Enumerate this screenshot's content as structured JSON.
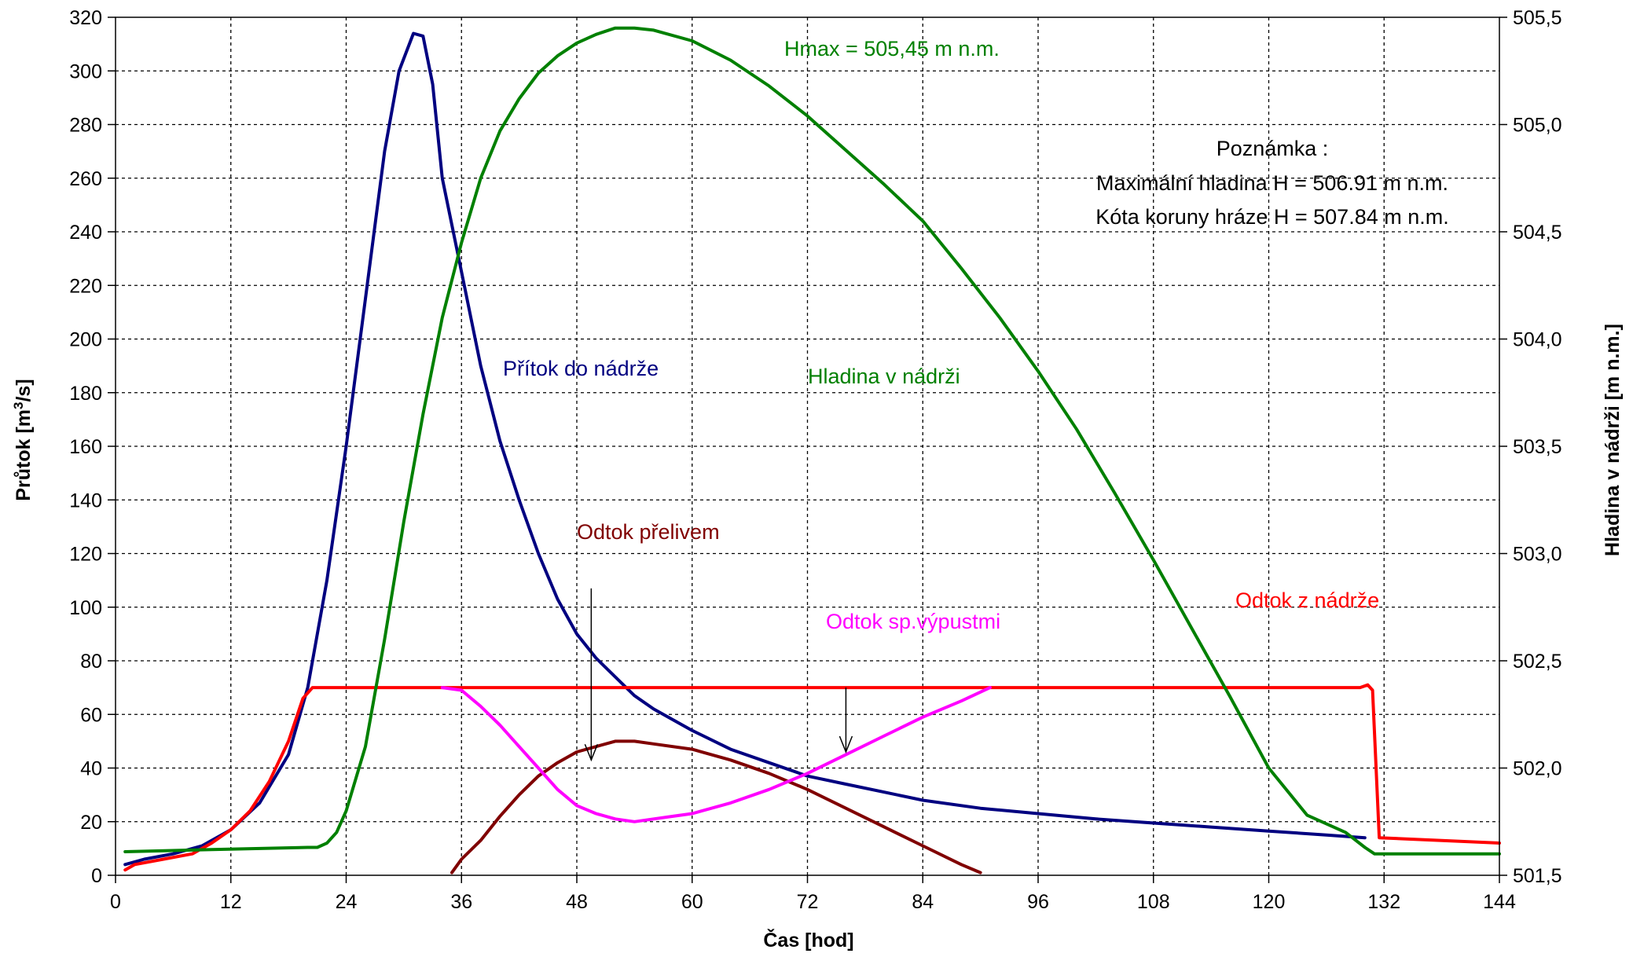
{
  "chart_data": {
    "type": "line",
    "xlabel": "Čas [hod]",
    "ylabel_left": "Průtok [m³/s]",
    "ylabel_left_base": "Průtok [m",
    "ylabel_left_sup": "3",
    "ylabel_left_tail": "/s]",
    "ylabel_right": "Hladina v nádrži [m n.m.]",
    "xlim": [
      0,
      144
    ],
    "ylim_left": [
      0,
      320
    ],
    "ylim_right": [
      501.5,
      505.5
    ],
    "grid": true,
    "x_ticks": [
      "0",
      "12",
      "24",
      "36",
      "48",
      "60",
      "72",
      "84",
      "96",
      "108",
      "120",
      "132",
      "144"
    ],
    "y_left_ticks": [
      "0",
      "20",
      "40",
      "60",
      "80",
      "100",
      "120",
      "140",
      "160",
      "180",
      "200",
      "220",
      "240",
      "260",
      "280",
      "300",
      "320"
    ],
    "y_right_ticks": [
      "501,5",
      "502,0",
      "502,5",
      "503,0",
      "503,5",
      "504,0",
      "504,5",
      "505,0",
      "505,5"
    ],
    "series": [
      {
        "name": "Přítok do nádrže",
        "axis": "left",
        "color": "#000080",
        "points": [
          [
            1,
            4
          ],
          [
            3,
            6
          ],
          [
            6,
            8
          ],
          [
            9,
            11
          ],
          [
            12,
            17
          ],
          [
            15,
            27
          ],
          [
            18,
            45
          ],
          [
            20,
            70
          ],
          [
            22,
            110
          ],
          [
            24,
            160
          ],
          [
            26,
            215
          ],
          [
            28,
            270
          ],
          [
            29.5,
            300
          ],
          [
            31,
            314
          ],
          [
            32,
            313
          ],
          [
            33,
            295
          ],
          [
            34,
            260
          ],
          [
            36,
            225
          ],
          [
            38,
            190
          ],
          [
            40,
            162
          ],
          [
            42,
            140
          ],
          [
            44,
            120
          ],
          [
            46,
            103
          ],
          [
            48,
            90
          ],
          [
            50,
            81
          ],
          [
            52,
            74
          ],
          [
            54,
            67
          ],
          [
            56,
            62
          ],
          [
            60,
            54
          ],
          [
            64,
            47
          ],
          [
            68,
            42
          ],
          [
            72,
            37
          ],
          [
            76,
            34
          ],
          [
            80,
            31
          ],
          [
            84,
            28
          ],
          [
            90,
            25
          ],
          [
            96,
            23
          ],
          [
            102,
            21
          ],
          [
            108,
            19.5
          ],
          [
            114,
            18
          ],
          [
            120,
            16.5
          ],
          [
            126,
            15
          ],
          [
            130,
            14
          ]
        ]
      },
      {
        "name": "Odtok z nádrže",
        "axis": "left",
        "color": "#ff0000",
        "points": [
          [
            1,
            2
          ],
          [
            2,
            4
          ],
          [
            5,
            6
          ],
          [
            8,
            8
          ],
          [
            10,
            12
          ],
          [
            12,
            17
          ],
          [
            14,
            24
          ],
          [
            16,
            35
          ],
          [
            18,
            50
          ],
          [
            19.5,
            66
          ],
          [
            20.5,
            70
          ],
          [
            40,
            70
          ],
          [
            80,
            70
          ],
          [
            120,
            70
          ],
          [
            129.5,
            70
          ],
          [
            130.3,
            71
          ],
          [
            130.8,
            69
          ],
          [
            131.5,
            14
          ],
          [
            144,
            12
          ]
        ]
      },
      {
        "name": "Odtok přelivem",
        "axis": "left",
        "color": "#800000",
        "points": [
          [
            35,
            1
          ],
          [
            36,
            6
          ],
          [
            38,
            13
          ],
          [
            40,
            22
          ],
          [
            42,
            30
          ],
          [
            44,
            37
          ],
          [
            46,
            42
          ],
          [
            48,
            46
          ],
          [
            50,
            48
          ],
          [
            52,
            50
          ],
          [
            54,
            50
          ],
          [
            56,
            49
          ],
          [
            60,
            47
          ],
          [
            64,
            43
          ],
          [
            68,
            38
          ],
          [
            72,
            32
          ],
          [
            76,
            25
          ],
          [
            80,
            18
          ],
          [
            84,
            11
          ],
          [
            88,
            4
          ],
          [
            90,
            1
          ]
        ]
      },
      {
        "name": "Odtok sp.výpustmi",
        "axis": "left",
        "color": "#ff00ff",
        "points": [
          [
            34,
            70
          ],
          [
            36,
            69
          ],
          [
            38,
            63
          ],
          [
            40,
            56
          ],
          [
            42,
            48
          ],
          [
            44,
            40
          ],
          [
            46,
            32
          ],
          [
            48,
            26
          ],
          [
            50,
            23
          ],
          [
            52,
            21
          ],
          [
            54,
            20
          ],
          [
            56,
            21
          ],
          [
            58,
            22
          ],
          [
            60,
            23
          ],
          [
            64,
            27
          ],
          [
            68,
            32
          ],
          [
            72,
            38
          ],
          [
            76,
            45
          ],
          [
            80,
            52
          ],
          [
            84,
            59
          ],
          [
            88,
            65
          ],
          [
            91,
            70
          ]
        ]
      },
      {
        "name": "Hladina v nádrži",
        "axis": "right",
        "color": "#008000",
        "points": [
          [
            1,
            501.61
          ],
          [
            10,
            501.62
          ],
          [
            20,
            501.63
          ],
          [
            21,
            501.63
          ],
          [
            22,
            501.65
          ],
          [
            23,
            501.7
          ],
          [
            24,
            501.8
          ],
          [
            26,
            502.1
          ],
          [
            28,
            502.6
          ],
          [
            30,
            503.15
          ],
          [
            32,
            503.65
          ],
          [
            34,
            504.1
          ],
          [
            36,
            504.45
          ],
          [
            38,
            504.75
          ],
          [
            40,
            504.97
          ],
          [
            42,
            505.12
          ],
          [
            44,
            505.24
          ],
          [
            46,
            505.32
          ],
          [
            48,
            505.38
          ],
          [
            50,
            505.42
          ],
          [
            52,
            505.45
          ],
          [
            54,
            505.45
          ],
          [
            56,
            505.44
          ],
          [
            60,
            505.39
          ],
          [
            64,
            505.3
          ],
          [
            68,
            505.18
          ],
          [
            72,
            505.04
          ],
          [
            76,
            504.88
          ],
          [
            80,
            504.72
          ],
          [
            84,
            504.55
          ],
          [
            88,
            504.33
          ],
          [
            92,
            504.1
          ],
          [
            96,
            503.85
          ],
          [
            100,
            503.58
          ],
          [
            104,
            503.28
          ],
          [
            108,
            502.97
          ],
          [
            112,
            502.65
          ],
          [
            116,
            502.33
          ],
          [
            120,
            502.0
          ],
          [
            124,
            501.78
          ],
          [
            128,
            501.7
          ],
          [
            130,
            501.63
          ],
          [
            131,
            501.6
          ],
          [
            132,
            501.6
          ],
          [
            144,
            501.6
          ]
        ]
      }
    ],
    "labels": {
      "inflow": "Přítok do nádrže",
      "level": "Hladina v nádrži",
      "spillway": "Odtok přelivem",
      "outlets": "Odtok sp.výpustmi",
      "outflow": "Odtok z nádrže",
      "hmax": "Hmax = 505,45 m n.m."
    },
    "note": {
      "title": "Poznámka :",
      "line1": "Maximální hladina H = 506.91 m n.m.",
      "line2": "Kóta koruny hráze H = 507.84 m n.m."
    },
    "arrows": [
      {
        "x": 49.5,
        "from": 107,
        "to": 43
      },
      {
        "x": 76,
        "from": 70,
        "to": 46
      }
    ]
  }
}
